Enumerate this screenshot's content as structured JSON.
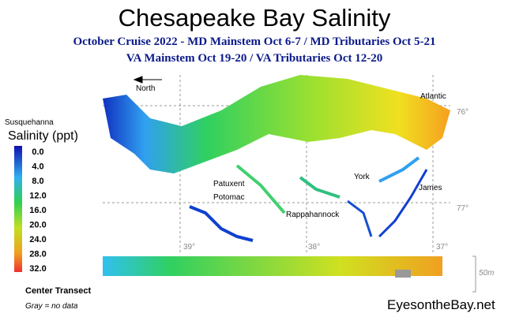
{
  "title": "Chesapeake Bay Salinity",
  "subtitle": [
    "October Cruise 2022 - MD Mainstem Oct 6-7 / MD Tributaries Oct 5-21",
    "VA Mainstem Oct 19-20 /  VA Tributaries Oct 12-20"
  ],
  "legend": {
    "title": "Salinity (ppt)",
    "labels": [
      "0.0",
      "4.0",
      "8.0",
      "12.0",
      "16.0",
      "20.0",
      "24.0",
      "28.0",
      "32.0"
    ]
  },
  "north": "North",
  "places": [
    "Susquehanna",
    "Atlantic",
    "Patuxent",
    "York",
    "James",
    "Potomac",
    "Rappahannock"
  ],
  "grid_labels": [
    "76°",
    "77°",
    "39°",
    "38°",
    "37°"
  ],
  "transect": {
    "title": "Center Transect",
    "note": "Gray = no data",
    "depth": "50m"
  },
  "credit": "EyesontheBay.net"
}
